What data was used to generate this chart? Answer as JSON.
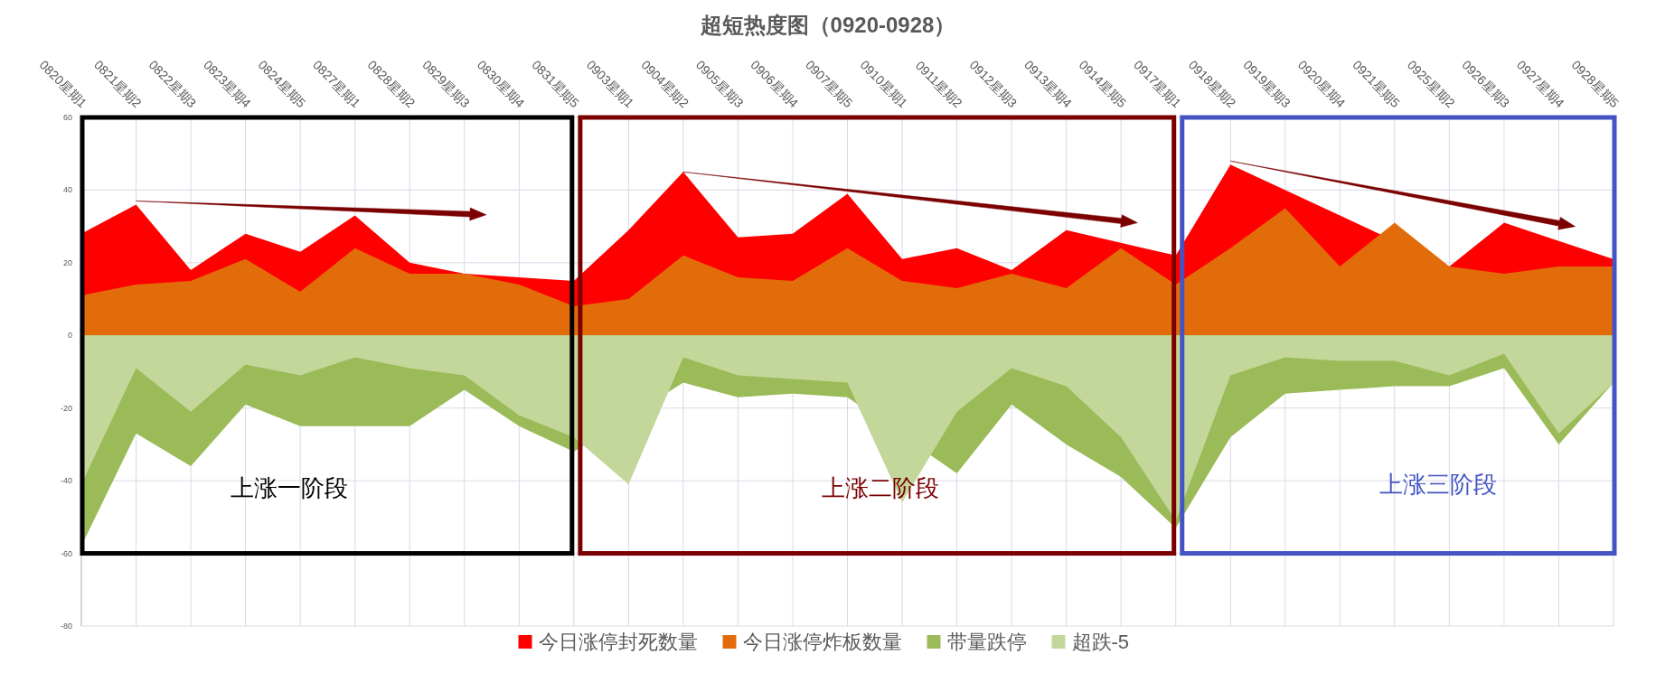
{
  "chart_data": {
    "type": "area",
    "title": "超短热度图（0920-0928）",
    "categories": [
      "0820星期1",
      "0821星期2",
      "0822星期3",
      "0823星期4",
      "0824星期5",
      "0827星期1",
      "0828星期2",
      "0829星期3",
      "0830星期4",
      "0831星期5",
      "0903星期1",
      "0904星期2",
      "0905星期3",
      "0906星期4",
      "0907星期5",
      "0910星期1",
      "0911星期2",
      "0912星期3",
      "0913星期4",
      "0914星期5",
      "0917星期1",
      "0918星期2",
      "0919星期3",
      "0920星期4",
      "0921星期5",
      "0925星期2",
      "0926星期3",
      "0927星期4",
      "0928星期5"
    ],
    "series": [
      {
        "name": "今日涨停封死数量",
        "color": "#ff0000",
        "values": [
          28,
          36,
          18,
          28,
          23,
          33,
          20,
          17,
          null,
          15,
          29,
          45,
          27,
          28,
          39,
          21,
          24,
          18,
          29,
          null,
          22,
          47,
          null,
          33,
          null,
          19,
          31,
          null,
          21
        ]
      },
      {
        "name": "今日涨停炸板数量",
        "color": "#e36c0a",
        "values": [
          11,
          14,
          15,
          21,
          12,
          24,
          17,
          17,
          14,
          8,
          10,
          22,
          16,
          15,
          24,
          15,
          13,
          17,
          13,
          24,
          14,
          24,
          35,
          19,
          31,
          19,
          17,
          19,
          19
        ]
      },
      {
        "name": "带量跌停",
        "color": "#9bbb59",
        "values": [
          -58,
          -27,
          -36,
          -19,
          -25,
          -25,
          -25,
          -15,
          -25,
          -32,
          null,
          -13,
          -17,
          -16,
          -17,
          null,
          -38,
          -19,
          -30,
          -39,
          -53,
          -28,
          -16,
          -15,
          -14,
          -14,
          -9,
          -30,
          -13
        ]
      },
      {
        "name": "超跌-5",
        "color": "#c4d79b",
        "values": [
          -41,
          -9,
          -21,
          -8,
          -11,
          -6,
          -9,
          -11,
          -22,
          -28,
          -41,
          -6,
          -11,
          -12,
          -13,
          -46,
          -21,
          -9,
          -14,
          -28,
          -51,
          -11,
          -6,
          -7,
          -7,
          -11,
          -5,
          -27,
          -13
        ]
      }
    ],
    "ylim": [
      -80,
      60
    ],
    "yticks": [
      -80,
      -60,
      -40,
      -20,
      0,
      20,
      40,
      60
    ],
    "grid": true,
    "legend": "bottom",
    "annotations": [
      "上涨一阶段",
      "上涨二阶段",
      "上涨三阶段"
    ]
  }
}
